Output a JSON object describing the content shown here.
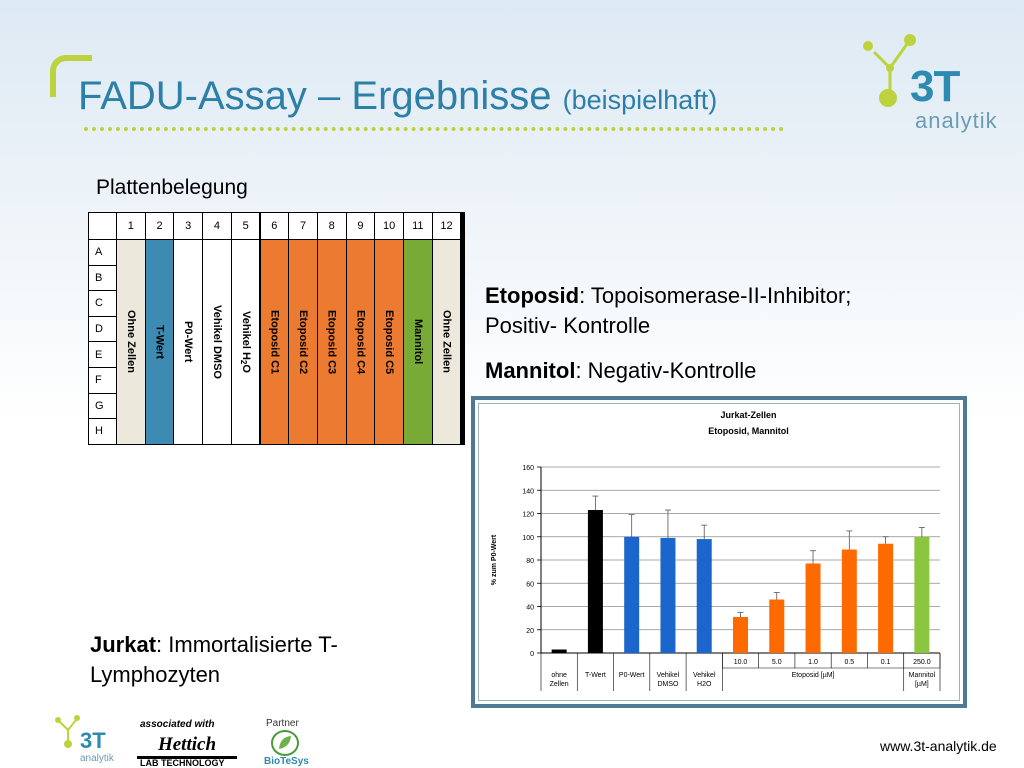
{
  "title": {
    "main": "FADU-Assay – Ergebnisse",
    "sub": "(beispielhaft)"
  },
  "logo": {
    "mark": "3T",
    "text": "analytik"
  },
  "plate": {
    "heading": "Plattenbelegung",
    "col_numbers": [
      "1",
      "2",
      "3",
      "4",
      "5",
      "6",
      "7",
      "8",
      "9",
      "10",
      "11",
      "12"
    ],
    "row_letters": [
      "A",
      "B",
      "C",
      "D",
      "E",
      "F",
      "G",
      "H"
    ],
    "columns": [
      {
        "label": "Ohne Zellen",
        "color": "#ece8dc"
      },
      {
        "label": "T-Wert",
        "color": "#3d8bb2"
      },
      {
        "label": "P0-Wert",
        "color": "#ffffff"
      },
      {
        "label": "Vehikel DMSO",
        "color": "#ffffff"
      },
      {
        "label": "Vehikel H",
        "sub": "2",
        "label_tail": "O",
        "color": "#ffffff"
      },
      {
        "label": "Etoposid C1",
        "color": "#ec7a30"
      },
      {
        "label": "Etoposid C2",
        "color": "#ec7a30"
      },
      {
        "label": "Etoposid C3",
        "color": "#ec7a30"
      },
      {
        "label": "Etoposid C4",
        "color": "#ec7a30"
      },
      {
        "label": "Etoposid C5",
        "color": "#ec7a30"
      },
      {
        "label": "Mannitol",
        "color": "#78aa36"
      },
      {
        "label": "Ohne Zellen",
        "color": "#ece8dc"
      }
    ]
  },
  "text": {
    "etoposid_bold": "Etoposid",
    "etoposid_rest": ": Topoisomerase-II-Inhibitor;",
    "etoposid_line2": "Positiv-  Kontrolle",
    "mannitol_bold": "Mannitol",
    "mannitol_rest": ": Negativ-Kontrolle",
    "jurkat_bold": "Jurkat",
    "jurkat_rest": ": Immortalisierte T-",
    "jurkat_line2": "Lymphozyten"
  },
  "footer": {
    "associated": "associated with",
    "hettich": "Hettich",
    "lab": "LAB TECHNOLOGY",
    "partner": "Partner",
    "biotesys": "BioTeSys",
    "url": "www.3t-analytik.de"
  },
  "colors": {
    "accent_green": "#bdd23c",
    "title_blue": "#2c7fa7",
    "orange": "#ec7a30",
    "green": "#78aa36",
    "blue": "#3d8bb2"
  },
  "chart_data": {
    "type": "bar",
    "title": "Jurkat-Zellen",
    "subtitle": "Etoposid, Mannitol",
    "ylabel": "% zum P0-Wert",
    "ylim": [
      0,
      160
    ],
    "yticks": [
      0,
      20,
      40,
      60,
      80,
      100,
      120,
      140,
      160
    ],
    "bars": [
      {
        "value": 3,
        "error": 0,
        "color": "#000000"
      },
      {
        "value": 123,
        "error": 12,
        "color": "#000000"
      },
      {
        "value": 100,
        "error": 19,
        "color": "#1a66cc"
      },
      {
        "value": 99,
        "error": 24,
        "color": "#1a66cc"
      },
      {
        "value": 98,
        "error": 12,
        "color": "#1a66cc"
      },
      {
        "value": 31,
        "error": 4,
        "color": "#ff6a00"
      },
      {
        "value": 46,
        "error": 6,
        "color": "#ff6a00"
      },
      {
        "value": 77,
        "error": 11,
        "color": "#ff6a00"
      },
      {
        "value": 89,
        "error": 16,
        "color": "#ff6a00"
      },
      {
        "value": 94,
        "error": 6,
        "color": "#ff6a00"
      },
      {
        "value": 100,
        "error": 8,
        "color": "#8cc63f"
      }
    ],
    "dose_labels": [
      "",
      "",
      "",
      "",
      "",
      "10.0",
      "5.0",
      "1.0",
      "0.5",
      "0.1",
      "250.0"
    ],
    "groups": [
      {
        "label": "ohne\nZellen",
        "from": 0,
        "to": 0
      },
      {
        "label": "T-Wert",
        "from": 1,
        "to": 1
      },
      {
        "label": "P0-Wert",
        "from": 2,
        "to": 2
      },
      {
        "label": "Vehikel\nDMSO",
        "from": 3,
        "to": 3
      },
      {
        "label": "Vehikel\nH2O",
        "from": 4,
        "to": 4
      },
      {
        "label": "Etoposid [µM]",
        "from": 5,
        "to": 9
      },
      {
        "label": "Mannitol\n[µM]",
        "from": 10,
        "to": 10
      }
    ]
  }
}
